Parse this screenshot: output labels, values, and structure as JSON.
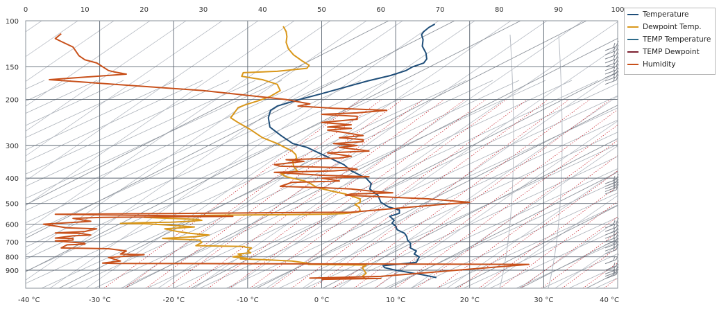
{
  "colors": {
    "grid": "#5a6470",
    "background": "#ffffff",
    "temperature": "#1f4e79",
    "dewpoint": "#d9971a",
    "temp_temperature": "#2e6b8a",
    "temp_dewpoint": "#7b1f2e",
    "humidity": "#c8501a",
    "isotherm": "#aab0b8",
    "mixing_ratio": "#c8323c"
  },
  "legend": {
    "items": [
      {
        "label": "Temperature",
        "color": "#1f4e79"
      },
      {
        "label": "Dewpoint Temp.",
        "color": "#d9971a"
      },
      {
        "label": "TEMP Temperature",
        "color": "#2e6b8a"
      },
      {
        "label": "TEMP Dewpoint",
        "color": "#7b1f2e"
      },
      {
        "label": "Humidity",
        "color": "#c8501a"
      }
    ]
  },
  "chart_data": {
    "type": "line",
    "grid": true,
    "legend_position": "top-right",
    "x_bottom": {
      "unit": "°C",
      "range": [
        -40,
        40
      ],
      "ticks": [
        "-40 °C",
        "-30 °C",
        "-20 °C",
        "-10 °C",
        "0 °C",
        "10 °C",
        "20 °C",
        "30 °C",
        "40 °C"
      ],
      "tick_values": [
        -40,
        -30,
        -20,
        -10,
        0,
        10,
        20,
        30,
        40
      ]
    },
    "x_top": {
      "range": [
        0,
        100
      ],
      "ticks": [
        "0",
        "10",
        "20",
        "30",
        "40",
        "50",
        "60",
        "70",
        "80",
        "90",
        "100"
      ],
      "tick_values": [
        0,
        10,
        20,
        30,
        40,
        50,
        60,
        70,
        80,
        90,
        100
      ]
    },
    "y": {
      "scale": "log",
      "reversed": true,
      "range": [
        1000,
        100
      ],
      "ticks": [
        "100",
        "150",
        "200",
        "300",
        "400",
        "500",
        "600",
        "700",
        "800",
        "900"
      ],
      "tick_values": [
        100,
        150,
        200,
        300,
        400,
        500,
        600,
        700,
        800,
        900
      ]
    },
    "series": [
      {
        "name": "Temperature",
        "axis": "bottom",
        "points": [
          [
            15.5,
            960
          ],
          [
            13.5,
            935
          ],
          [
            11.5,
            915
          ],
          [
            10,
            900
          ],
          [
            8.5,
            880
          ],
          [
            8.3,
            865
          ],
          [
            9.5,
            858
          ],
          [
            12.8,
            840
          ],
          [
            13,
            820
          ],
          [
            13.2,
            800
          ],
          [
            12.5,
            780
          ],
          [
            12.8,
            760
          ],
          [
            12,
            740
          ],
          [
            12,
            710
          ],
          [
            11.6,
            690
          ],
          [
            11.5,
            670
          ],
          [
            11.2,
            650
          ],
          [
            10.2,
            630
          ],
          [
            10,
            610
          ],
          [
            9.5,
            595
          ],
          [
            9.8,
            580
          ],
          [
            9.2,
            560
          ],
          [
            10.5,
            545
          ],
          [
            10.5,
            530
          ],
          [
            9,
            515
          ],
          [
            8,
            495
          ],
          [
            7.6,
            465
          ],
          [
            6.5,
            440
          ],
          [
            6.7,
            420
          ],
          [
            6,
            400
          ],
          [
            4,
            375
          ],
          [
            3,
            355
          ],
          [
            0.6,
            330
          ],
          [
            -2,
            305
          ],
          [
            -3.9,
            295
          ],
          [
            -5.5,
            275
          ],
          [
            -7,
            255
          ],
          [
            -7.2,
            235
          ],
          [
            -6.9,
            220
          ],
          [
            -6,
            212
          ],
          [
            -3,
            200
          ],
          [
            0,
            190
          ],
          [
            3,
            180
          ],
          [
            6.2,
            170
          ],
          [
            9.3,
            162
          ],
          [
            11.4,
            155
          ],
          [
            12.3,
            150
          ],
          [
            13.8,
            145
          ],
          [
            14.2,
            140
          ],
          [
            14.1,
            133
          ],
          [
            13.6,
            125
          ],
          [
            13.7,
            118
          ],
          [
            13.5,
            113
          ],
          [
            13.8,
            110
          ],
          [
            14.5,
            106
          ],
          [
            15.3,
            103
          ]
        ]
      },
      {
        "name": "Dewpoint Temp.",
        "axis": "bottom",
        "points": [
          [
            6,
            975
          ],
          [
            5.5,
            950
          ],
          [
            6,
            925
          ],
          [
            5.5,
            880
          ],
          [
            6,
            860
          ],
          [
            -1.8,
            855
          ],
          [
            -1.5,
            850
          ],
          [
            -4,
            830
          ],
          [
            -6,
            825
          ],
          [
            -8,
            820
          ],
          [
            -11,
            815
          ],
          [
            -10,
            810
          ],
          [
            -12,
            800
          ],
          [
            -10.8,
            790
          ],
          [
            -11.3,
            780
          ],
          [
            -9.6,
            772
          ],
          [
            -10,
            760
          ],
          [
            -9.5,
            740
          ],
          [
            -10.3,
            735
          ],
          [
            -10.5,
            730
          ],
          [
            -17,
            725
          ],
          [
            -16.2,
            705
          ],
          [
            -16.5,
            690
          ],
          [
            -19.8,
            684
          ],
          [
            -21.5,
            680
          ],
          [
            -17,
            670
          ],
          [
            -15.2,
            660
          ],
          [
            -17.8,
            650
          ],
          [
            -19.5,
            640
          ],
          [
            -21.2,
            625
          ],
          [
            -17.2,
            615
          ],
          [
            -20.5,
            605
          ],
          [
            -24,
            598
          ],
          [
            -27.2,
            596
          ],
          [
            -24.2,
            592
          ],
          [
            -20.4,
            590
          ],
          [
            -17.8,
            585
          ],
          [
            -16.2,
            580
          ],
          [
            -16.8,
            575
          ],
          [
            -20.5,
            570
          ],
          [
            -24,
            565
          ],
          [
            -20,
            560
          ],
          [
            -15,
            555
          ],
          [
            -10,
            553
          ],
          [
            -5,
            552
          ],
          [
            0,
            550
          ],
          [
            3,
            547
          ],
          [
            5,
            538
          ],
          [
            5.2,
            530
          ],
          [
            5,
            515
          ],
          [
            4.5,
            505
          ],
          [
            5.2,
            495
          ],
          [
            5.2,
            480
          ],
          [
            3.2,
            460
          ],
          [
            1.6,
            450
          ],
          [
            -0.6,
            435
          ],
          [
            -1.5,
            420
          ],
          [
            -2.3,
            410
          ],
          [
            -4.8,
            395
          ],
          [
            -5.5,
            385
          ],
          [
            -3.3,
            375
          ],
          [
            -3.8,
            360
          ],
          [
            -3.9,
            345
          ],
          [
            -3.4,
            335
          ],
          [
            -3.5,
            325
          ],
          [
            -4,
            315
          ],
          [
            -5,
            305
          ],
          [
            -6,
            295
          ],
          [
            -8,
            280
          ],
          [
            -9.7,
            260
          ],
          [
            -11.3,
            245
          ],
          [
            -12.3,
            235
          ],
          [
            -11.8,
            225
          ],
          [
            -11.3,
            215
          ],
          [
            -10.4,
            210
          ],
          [
            -8.5,
            202
          ],
          [
            -7,
            195
          ],
          [
            -5.6,
            185
          ],
          [
            -6,
            175
          ],
          [
            -8,
            168
          ],
          [
            -10.8,
            163
          ],
          [
            -10.6,
            158
          ],
          [
            -6,
            156
          ],
          [
            -2,
            152
          ],
          [
            -1.7,
            148
          ],
          [
            -2.7,
            142
          ],
          [
            -3.8,
            135
          ],
          [
            -4.5,
            128
          ],
          [
            -4.8,
            121
          ],
          [
            -4.7,
            115
          ],
          [
            -4.8,
            110
          ],
          [
            -5.2,
            105
          ]
        ]
      },
      {
        "name": "Humidity",
        "axis": "top",
        "points": [
          [
            50,
            975
          ],
          [
            60,
            968
          ],
          [
            48,
            965
          ],
          [
            52,
            960
          ],
          [
            60,
            950
          ],
          [
            85,
            855
          ],
          [
            55,
            852
          ],
          [
            15,
            848
          ],
          [
            13,
            845
          ],
          [
            16,
            830
          ],
          [
            14,
            805
          ],
          [
            20,
            785
          ],
          [
            16,
            780
          ],
          [
            17,
            760
          ],
          [
            14,
            745
          ],
          [
            6,
            740
          ],
          [
            7,
            720
          ],
          [
            10,
            716
          ],
          [
            10,
            710
          ],
          [
            5,
            695
          ],
          [
            8,
            690
          ],
          [
            8,
            680
          ],
          [
            5,
            678
          ],
          [
            8,
            665
          ],
          [
            11,
            660
          ],
          [
            9,
            650
          ],
          [
            5,
            648
          ],
          [
            10,
            640
          ],
          [
            12,
            625
          ],
          [
            7,
            620
          ],
          [
            3,
            600
          ],
          [
            11,
            585
          ],
          [
            8,
            570
          ],
          [
            13,
            565
          ],
          [
            35,
            560
          ],
          [
            5,
            550
          ],
          [
            55,
            540
          ],
          [
            70,
            505
          ],
          [
            75,
            495
          ],
          [
            68,
            480
          ],
          [
            59,
            470
          ],
          [
            54,
            465
          ],
          [
            55,
            460
          ],
          [
            62,
            455
          ],
          [
            59,
            450
          ],
          [
            55,
            440
          ],
          [
            50,
            435
          ],
          [
            43,
            430
          ],
          [
            45,
            415
          ],
          [
            53,
            410
          ],
          [
            50,
            400
          ],
          [
            58,
            395
          ],
          [
            50,
            390
          ],
          [
            46,
            385
          ],
          [
            42,
            380
          ],
          [
            52,
            375
          ],
          [
            56,
            370
          ],
          [
            54,
            365
          ],
          [
            43,
            360
          ],
          [
            42,
            355
          ],
          [
            47,
            345
          ],
          [
            44,
            340
          ],
          [
            53,
            335
          ],
          [
            55,
            330
          ],
          [
            51,
            320
          ],
          [
            58,
            315
          ],
          [
            53,
            305
          ],
          [
            56,
            300
          ],
          [
            52,
            295
          ],
          [
            57,
            290
          ],
          [
            57,
            285
          ],
          [
            53,
            280
          ],
          [
            57,
            275
          ],
          [
            54,
            268
          ],
          [
            51,
            262
          ],
          [
            55,
            258
          ],
          [
            51,
            255
          ],
          [
            55,
            250
          ],
          [
            50,
            245
          ],
          [
            56,
            238
          ],
          [
            56,
            232
          ],
          [
            50,
            228
          ],
          [
            56,
            225
          ],
          [
            61,
            220
          ],
          [
            52,
            216
          ],
          [
            46,
            212
          ],
          [
            48,
            208
          ],
          [
            44,
            200
          ],
          [
            30,
            185
          ],
          [
            4,
            168
          ],
          [
            17,
            160
          ],
          [
            15,
            157
          ],
          [
            14,
            155
          ],
          [
            12,
            145
          ],
          [
            10,
            141
          ],
          [
            9,
            136
          ],
          [
            8,
            126
          ],
          [
            6,
            120
          ],
          [
            5,
            117
          ],
          [
            6,
            112
          ]
        ]
      }
    ],
    "wind_barbs": true
  }
}
